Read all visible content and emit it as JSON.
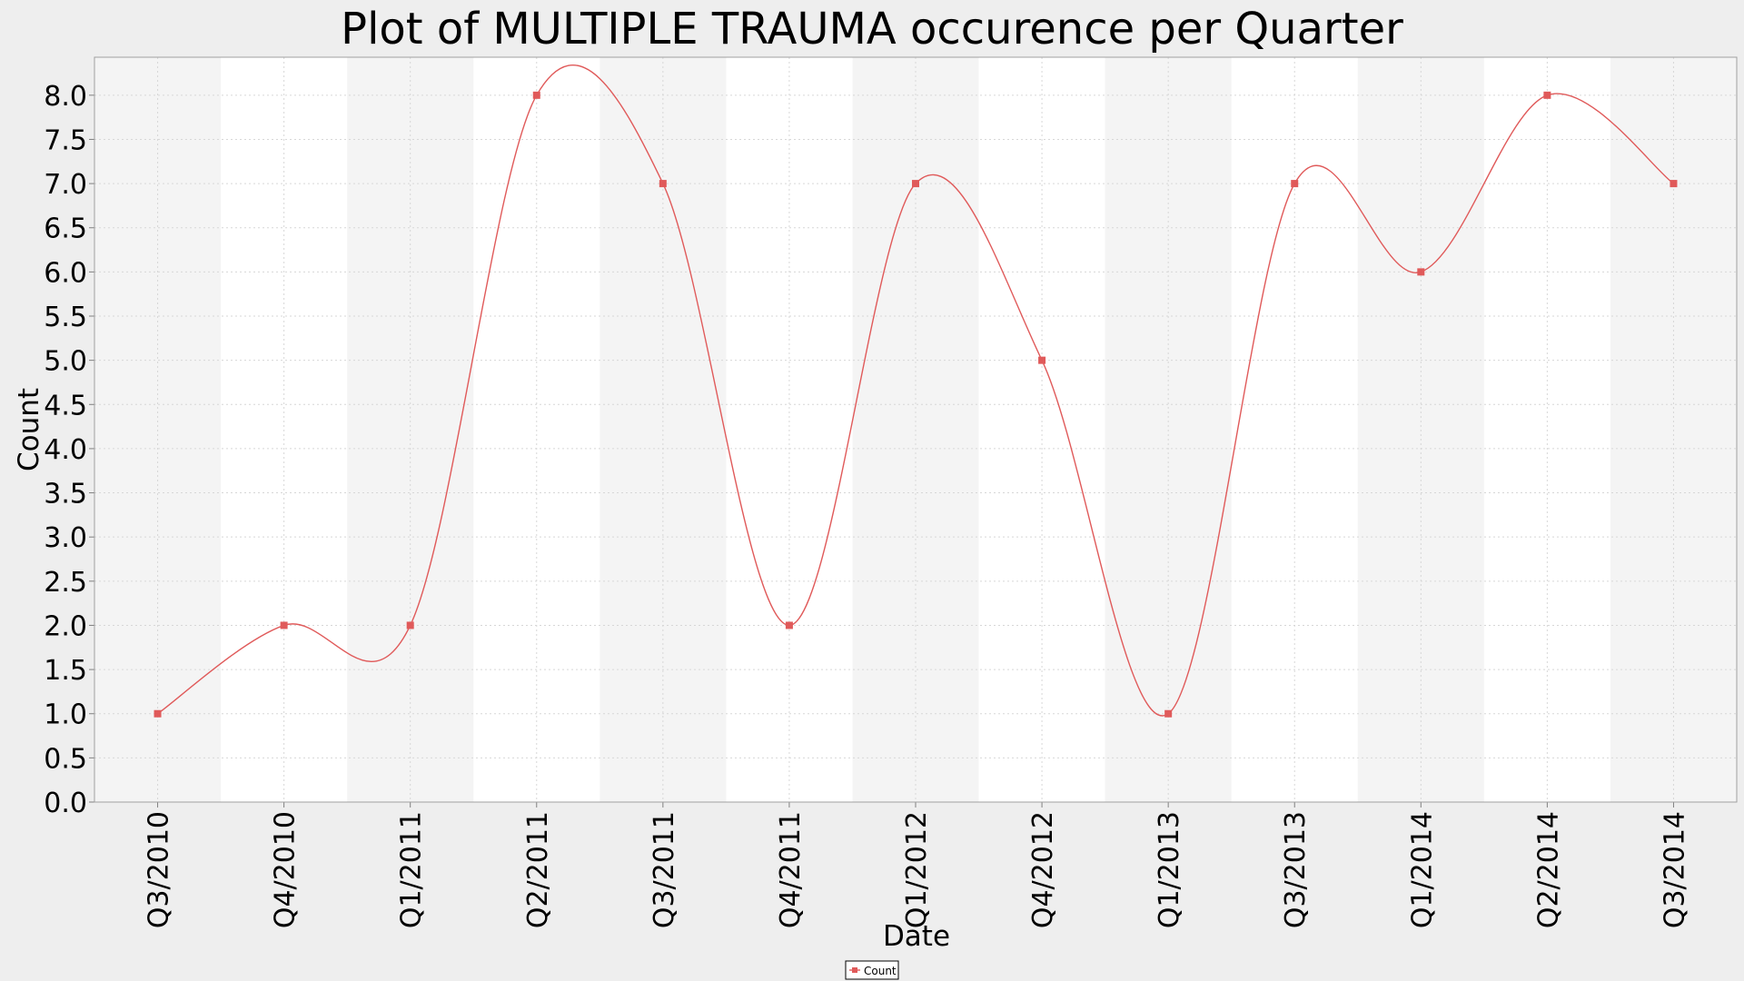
{
  "chart_data": {
    "type": "line",
    "title": "Plot of MULTIPLE TRAUMA occurence per Quarter",
    "xlabel": "Date",
    "ylabel": "Count",
    "ylim": [
      0,
      8.43
    ],
    "yticks": [
      "0.0",
      "0.5",
      "1.0",
      "1.5",
      "2.0",
      "2.5",
      "3.0",
      "3.5",
      "4.0",
      "4.5",
      "5.0",
      "5.5",
      "6.0",
      "6.5",
      "7.0",
      "7.5",
      "8.0"
    ],
    "categories": [
      "Q3/2010",
      "Q4/2010",
      "Q1/2011",
      "Q2/2011",
      "Q3/2011",
      "Q4/2011",
      "Q1/2012",
      "Q4/2012",
      "Q1/2013",
      "Q3/2013",
      "Q1/2014",
      "Q2/2014",
      "Q3/2014"
    ],
    "series": [
      {
        "name": "Count",
        "color": "#e05a5a",
        "values": [
          1,
          2,
          2,
          8,
          7,
          2,
          7,
          5,
          1,
          7,
          6,
          8,
          7
        ]
      }
    ],
    "grid": true,
    "legend_position": "bottom-center",
    "background_bands": [
      "#f4f4f4",
      "#ffffff"
    ]
  }
}
